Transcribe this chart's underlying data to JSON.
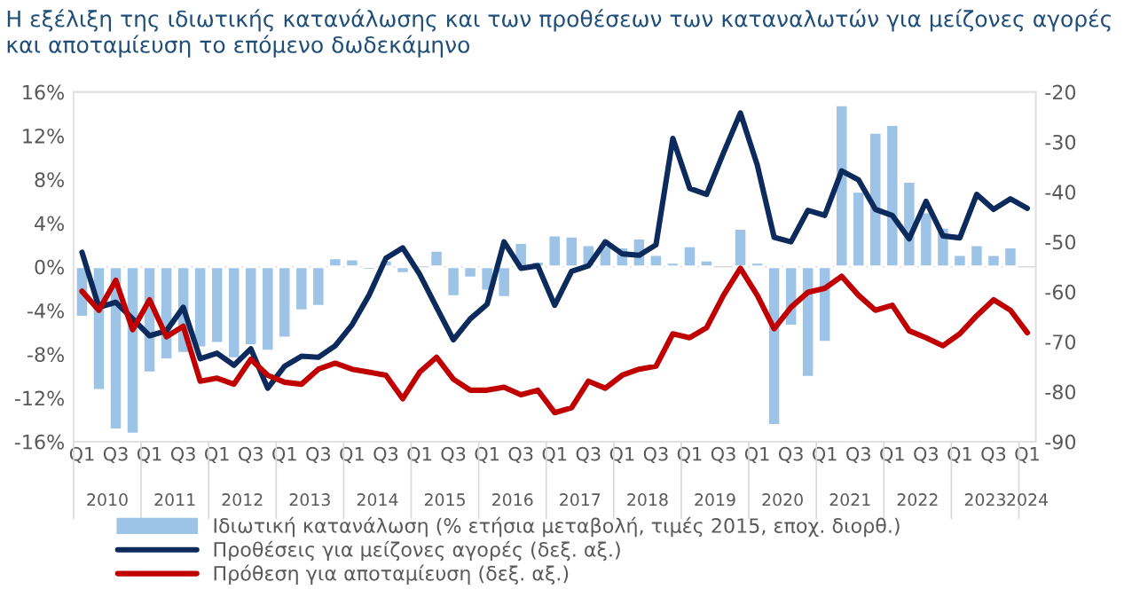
{
  "chart_data": {
    "type": "bar",
    "title": "Η εξέλιξη της ιδιωτικής κατανάλωσης και των προθέσεων των καταναλωτών για μείζονες αγορές και αποταμίευση το επόμενο δωδεκάμηνο",
    "categories": [
      "Q1",
      null,
      "Q3",
      null,
      "Q1",
      null,
      "Q3",
      null,
      "Q1",
      null,
      "Q3",
      null,
      "Q1",
      null,
      "Q3",
      null,
      "Q1",
      null,
      "Q3",
      null,
      "Q1",
      null,
      "Q3",
      null,
      "Q1",
      null,
      "Q3",
      null,
      "Q1",
      null,
      "Q3",
      null,
      "Q1",
      null,
      "Q3",
      null,
      "Q1",
      null,
      "Q3",
      null,
      "Q1",
      null,
      "Q3",
      null,
      "Q1",
      null,
      "Q3",
      null,
      "Q1",
      null,
      "Q3",
      null,
      "Q1",
      null,
      "Q3",
      null,
      "Q1"
    ],
    "annotations": [
      "2010",
      "2011",
      "2012",
      "2013",
      "2014",
      "2015",
      "2016",
      "2017",
      "2018",
      "2019",
      "2020",
      "2021",
      "2022",
      "2023",
      "2024"
    ],
    "series": [
      {
        "name": "Ιδιωτική κατανάλωση (% ετήσια μεταβολή, τιμές 2015, εποχ. διορθ.)",
        "color": "#9dc3e6",
        "values": [
          -4.6,
          -11.3,
          -14.9,
          -15.3,
          -9.7,
          -8.5,
          -7.9,
          -7.4,
          -7.0,
          -8.4,
          -7.2,
          -7.7,
          -6.5,
          -4.0,
          -3.6,
          0.8,
          0.7,
          -0.3,
          0.6,
          -0.6,
          null,
          1.5,
          -2.7,
          -1.0,
          -2.2,
          -2.8,
          2.2,
          0.5,
          2.9,
          2.8,
          2.0,
          2.0,
          1.8,
          2.6,
          1.1,
          0.4,
          1.9,
          0.6,
          null,
          3.5,
          0.4,
          -14.5,
          -5.4,
          -10.1,
          -6.9,
          14.8,
          6.9,
          12.3,
          13.0,
          7.8,
          5.0,
          3.6,
          1.1,
          2.0,
          1.1,
          1.8,
          null
        ]
      },
      {
        "name": "Προθέσεις για μείζονες αγορές (δεξ. αξ.)",
        "type": "line",
        "axis": "y2",
        "color": "#0d2a5c",
        "values": [
          -52.1,
          -63.1,
          -62.1,
          -65.4,
          -68.8,
          -67.8,
          -63.1,
          -73.4,
          -72.3,
          -74.7,
          -71.4,
          -79.3,
          -74.9,
          -72.9,
          -73.1,
          -70.8,
          -66.6,
          -60.7,
          -53.3,
          -51.2,
          -56.5,
          -63.1,
          -69.6,
          -65.4,
          -62.5,
          -50.0,
          -55.3,
          -54.8,
          -62.7,
          -55.9,
          -54.8,
          -50.0,
          -52.4,
          -52.7,
          -50.6,
          -29.3,
          -39.3,
          -40.5,
          -32.2,
          -24.2,
          -34.6,
          -49.1,
          -50.0,
          -43.7,
          -44.7,
          -35.8,
          -37.6,
          -43.5,
          -44.7,
          -49.4,
          -41.9,
          -48.8,
          -49.2,
          -40.5,
          -43.5,
          -41.4,
          -43.3
        ]
      },
      {
        "name": "Πρόθεση για αποταμίευση (δεξ. αξ.)",
        "type": "line",
        "axis": "y2",
        "color": "#c00000",
        "values": [
          -59.9,
          -63.7,
          -57.7,
          -67.6,
          -61.6,
          -69.0,
          -66.9,
          -77.9,
          -77.3,
          -78.5,
          -73.5,
          -76.7,
          -78.1,
          -78.5,
          -75.5,
          -74.3,
          -75.5,
          -76.1,
          -76.7,
          -81.4,
          -76.1,
          -73.1,
          -77.5,
          -79.7,
          -79.7,
          -79.1,
          -80.6,
          -79.7,
          -84.2,
          -83.2,
          -77.9,
          -79.3,
          -76.7,
          -75.5,
          -74.9,
          -68.4,
          -69.2,
          -67.2,
          -60.7,
          -55.3,
          -60.7,
          -67.4,
          -63.1,
          -60.1,
          -59.3,
          -56.9,
          -60.7,
          -63.7,
          -62.7,
          -67.8,
          -69.2,
          -70.8,
          -68.4,
          -64.8,
          -61.6,
          -63.7,
          -68.2
        ]
      }
    ],
    "ylim": [
      -16,
      16
    ],
    "yticks": [
      {
        "value": -16,
        "label": "-16%"
      },
      {
        "value": -12,
        "label": "-12%"
      },
      {
        "value": -8,
        "label": "-8%"
      },
      {
        "value": -4,
        "label": "-4%"
      },
      {
        "value": 0,
        "label": "0%"
      },
      {
        "value": 4,
        "label": "4%"
      },
      {
        "value": 8,
        "label": "8%"
      },
      {
        "value": 12,
        "label": "12%"
      },
      {
        "value": 16,
        "label": "16%"
      }
    ],
    "y2lim": [
      -90,
      -20
    ],
    "y2ticks": [
      -90,
      -80,
      -70,
      -60,
      -50,
      -40,
      -30,
      -20
    ],
    "ref_lines": [
      {
        "axis": "y",
        "value": 0,
        "color": "#d9d9d9"
      }
    ],
    "grid": false,
    "legend": "bottom"
  }
}
